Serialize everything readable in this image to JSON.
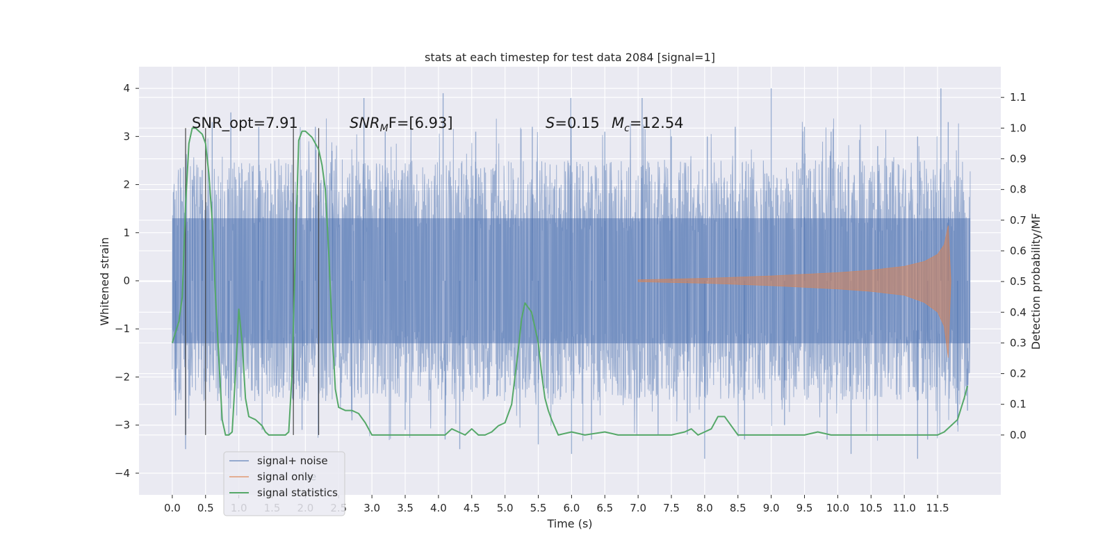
{
  "chart_data": {
    "type": "line",
    "title": "stats at each timestep for test data 2084 [signal=1]",
    "xlabel": "Time (s)",
    "ylabel": "Whitened strain",
    "ylabel_right": "Detection probability/MF",
    "xlim": [
      -0.5,
      12.45
    ],
    "ylim": [
      -4.45,
      4.45
    ],
    "ylim_right": [
      -0.195,
      1.2
    ],
    "x_ticks": [
      "0.0",
      "0.5",
      "1.0",
      "1.5",
      "2.0",
      "2.5",
      "3.0",
      "3.5",
      "4.0",
      "4.5",
      "5.0",
      "5.5",
      "6.0",
      "6.5",
      "7.0",
      "7.5",
      "8.0",
      "8.5",
      "9.0",
      "9.5",
      "10.0",
      "10.5",
      "11.0",
      "11.5"
    ],
    "y_ticks": [
      "4",
      "3",
      "2",
      "1",
      "0",
      "−1",
      "−2",
      "−3",
      "−4"
    ],
    "y_ticks_right": [
      "1.1",
      "1.0",
      "0.9",
      "0.8",
      "0.7",
      "0.6",
      "0.5",
      "0.4",
      "0.3",
      "0.2",
      "0.1",
      "0.0"
    ],
    "grid": true,
    "background": "#eaeaf2",
    "annotations": {
      "snr_opt": "SNR_opt=7.91",
      "snr_mf_main": "SNR",
      "snr_mf_sub": "M",
      "snr_mf_rest": "F=[6.93]",
      "s_label": "S",
      "s_value": "=0.15",
      "mc_label": "M",
      "mc_sub": "c",
      "mc_value": "=12.54"
    },
    "legend": {
      "placement": "lower-left",
      "entries": [
        {
          "label": "signal+ noise",
          "color": "#4c72b0"
        },
        {
          "label": "signal only",
          "color": "#dd8452"
        },
        {
          "label": "signal statistics",
          "color": "#55a868"
        }
      ],
      "ghost_text": "ise"
    },
    "vertical_markers_x": [
      0.2,
      0.5,
      1.82,
      2.2
    ],
    "series": [
      {
        "name": "signal+ noise",
        "color": "#4c72b0",
        "x_range": [
          0.0,
          11.99
        ],
        "envelope_typical": [
          -2.0,
          2.0
        ],
        "peaks": [
          [
            0.3,
            2.1
          ],
          [
            0.45,
            2.3
          ],
          [
            0.6,
            3.3
          ],
          [
            0.88,
            3.5
          ],
          [
            1.3,
            3.2
          ],
          [
            2.15,
            3.2
          ],
          [
            2.4,
            2.7
          ],
          [
            2.88,
            3.8
          ],
          [
            3.2,
            3.1
          ],
          [
            4.07,
            3.9
          ],
          [
            4.56,
            3.1
          ],
          [
            5.41,
            3.2
          ],
          [
            5.99,
            3.8
          ],
          [
            6.5,
            3.1
          ],
          [
            7.06,
            3.8
          ],
          [
            7.5,
            3.0
          ],
          [
            8.04,
            3.0
          ],
          [
            8.46,
            3.2
          ],
          [
            9.0,
            4.0
          ],
          [
            9.5,
            3.2
          ],
          [
            9.9,
            3.1
          ],
          [
            10.6,
            2.8
          ],
          [
            11.2,
            3.0
          ],
          [
            11.55,
            4.0
          ],
          [
            11.66,
            3.3
          ]
        ],
        "troughs": [
          [
            0.05,
            -2.8
          ],
          [
            0.2,
            -3.5
          ],
          [
            0.85,
            -3.2
          ],
          [
            1.35,
            -3.1
          ],
          [
            1.95,
            -3.1
          ],
          [
            2.7,
            -2.9
          ],
          [
            3.5,
            -3.1
          ],
          [
            4.1,
            -3.3
          ],
          [
            4.32,
            -3.5
          ],
          [
            5.5,
            -3.4
          ],
          [
            6.0,
            -3.6
          ],
          [
            6.3,
            -3.3
          ],
          [
            7.3,
            -3.2
          ],
          [
            7.74,
            -3.2
          ],
          [
            8.0,
            -3.7
          ],
          [
            8.6,
            -3.3
          ],
          [
            9.2,
            -3.0
          ],
          [
            9.84,
            -3.3
          ],
          [
            10.2,
            -3.6
          ],
          [
            11.2,
            -3.7
          ],
          [
            11.35,
            -3.3
          ],
          [
            11.8,
            -3.0
          ],
          [
            11.95,
            -2.7
          ]
        ]
      },
      {
        "name": "signal only",
        "color": "#dd8452",
        "x": [
          7.0,
          8.0,
          9.0,
          10.0,
          10.5,
          11.0,
          11.3,
          11.5,
          11.6,
          11.66,
          11.7
        ],
        "y_upper": [
          0.02,
          0.05,
          0.1,
          0.17,
          0.22,
          0.3,
          0.4,
          0.55,
          0.75,
          1.15,
          0.0
        ],
        "y_lower": [
          -0.02,
          -0.05,
          -0.1,
          -0.17,
          -0.22,
          -0.3,
          -0.45,
          -0.65,
          -0.95,
          -1.6,
          0.0
        ]
      },
      {
        "name": "signal statistics",
        "color": "#55a868",
        "axis": "right",
        "x": [
          0.0,
          0.1,
          0.15,
          0.2,
          0.25,
          0.3,
          0.35,
          0.4,
          0.45,
          0.5,
          0.55,
          0.6,
          0.65,
          0.7,
          0.75,
          0.8,
          0.85,
          0.9,
          0.95,
          1.0,
          1.05,
          1.1,
          1.15,
          1.2,
          1.25,
          1.3,
          1.35,
          1.4,
          1.45,
          1.5,
          1.55,
          1.6,
          1.65,
          1.7,
          1.75,
          1.8,
          1.85,
          1.9,
          1.95,
          2.0,
          2.05,
          2.1,
          2.15,
          2.2,
          2.25,
          2.3,
          2.35,
          2.4,
          2.45,
          2.5,
          2.6,
          2.7,
          2.8,
          2.9,
          3.0,
          3.5,
          3.8,
          4.0,
          4.1,
          4.2,
          4.3,
          4.4,
          4.5,
          4.6,
          4.7,
          4.8,
          4.9,
          5.0,
          5.1,
          5.2,
          5.25,
          5.3,
          5.4,
          5.5,
          5.55,
          5.6,
          5.65,
          5.7,
          5.8,
          6.0,
          6.2,
          6.5,
          6.7,
          7.0,
          7.5,
          7.7,
          7.8,
          7.9,
          8.0,
          8.1,
          8.2,
          8.3,
          8.4,
          8.5,
          9.0,
          9.5,
          9.7,
          9.9,
          10.0,
          10.5,
          11.0,
          11.5,
          11.6,
          11.7,
          11.8,
          11.9,
          11.95
        ],
        "y": [
          0.3,
          0.37,
          0.45,
          0.75,
          0.95,
          1.0,
          1.0,
          0.99,
          0.98,
          0.95,
          0.85,
          0.7,
          0.45,
          0.25,
          0.05,
          0.0,
          0.0,
          0.01,
          0.2,
          0.41,
          0.3,
          0.12,
          0.06,
          0.055,
          0.05,
          0.04,
          0.03,
          0.01,
          0.0,
          0.0,
          0.0,
          0.0,
          0.0,
          0.0,
          0.01,
          0.2,
          0.6,
          0.96,
          0.99,
          0.99,
          0.98,
          0.97,
          0.95,
          0.93,
          0.88,
          0.8,
          0.6,
          0.35,
          0.15,
          0.09,
          0.08,
          0.08,
          0.07,
          0.04,
          0.0,
          0.0,
          0.0,
          0.0,
          0.0,
          0.02,
          0.01,
          0.0,
          0.02,
          0.0,
          0.0,
          0.01,
          0.03,
          0.04,
          0.1,
          0.28,
          0.38,
          0.43,
          0.4,
          0.3,
          0.2,
          0.12,
          0.08,
          0.05,
          0.0,
          0.01,
          0.0,
          0.01,
          0.0,
          0.0,
          0.0,
          0.01,
          0.02,
          0.0,
          0.01,
          0.02,
          0.06,
          0.06,
          0.03,
          0.0,
          0.0,
          0.0,
          0.01,
          0.0,
          0.0,
          0.0,
          0.0,
          0.0,
          0.01,
          0.03,
          0.05,
          0.12,
          0.16
        ]
      }
    ]
  }
}
